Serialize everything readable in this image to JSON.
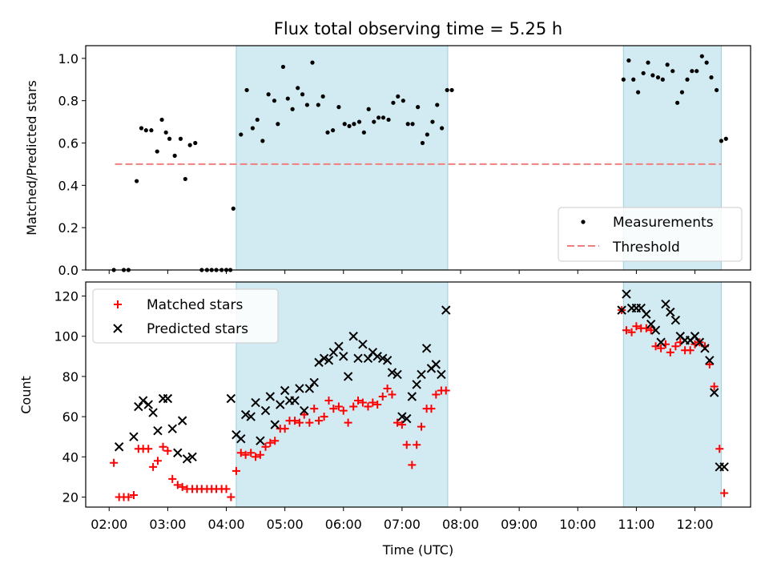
{
  "figure": {
    "title": "Flux total observing time = 5.25 h",
    "xlabel": "Time (UTC)"
  },
  "chart_data": [
    {
      "type": "scatter",
      "title": "Flux total observing time = 5.25 h",
      "xlabel": "",
      "ylabel": "Matched/Predicted stars",
      "xlim_hours": [
        1.6,
        12.95
      ],
      "ylim": [
        0,
        1.06
      ],
      "yticks": [
        "0.0",
        "0.2",
        "0.4",
        "0.6",
        "0.8",
        "1.0"
      ],
      "shaded_intervals_hours": [
        [
          4.17,
          7.78
        ],
        [
          10.78,
          12.45
        ]
      ],
      "shade_color": "#add8e6",
      "legend_position": "lower right",
      "threshold": {
        "name": "Threshold",
        "value": 0.5,
        "x_range_hours": [
          2.1,
          12.45
        ],
        "color": "#f08080"
      },
      "series": [
        {
          "name": "Measurements",
          "color": "#000000",
          "x_hours": [
            2.08,
            2.25,
            2.33,
            2.47,
            2.55,
            2.63,
            2.72,
            2.82,
            2.9,
            2.97,
            3.03,
            3.12,
            3.22,
            3.3,
            3.38,
            3.47,
            3.58,
            3.67,
            3.75,
            3.83,
            3.92,
            4.0,
            4.07,
            4.12,
            4.25,
            4.35,
            4.45,
            4.53,
            4.62,
            4.72,
            4.82,
            4.88,
            4.97,
            5.05,
            5.13,
            5.22,
            5.3,
            5.38,
            5.47,
            5.57,
            5.65,
            5.73,
            5.82,
            5.92,
            6.02,
            6.1,
            6.18,
            6.27,
            6.35,
            6.43,
            6.52,
            6.6,
            6.68,
            6.77,
            6.85,
            6.93,
            7.02,
            7.1,
            7.18,
            7.27,
            7.35,
            7.43,
            7.52,
            7.6,
            7.68,
            7.77,
            7.85,
            10.78,
            10.87,
            10.95,
            11.03,
            11.12,
            11.2,
            11.28,
            11.37,
            11.45,
            11.53,
            11.62,
            11.7,
            11.78,
            11.87,
            11.95,
            12.03,
            12.12,
            12.2,
            12.28,
            12.37,
            12.45,
            12.53
          ],
          "y": [
            0.0,
            0.0,
            0.0,
            0.42,
            0.67,
            0.66,
            0.66,
            0.56,
            0.71,
            0.65,
            0.62,
            0.54,
            0.62,
            0.43,
            0.59,
            0.6,
            0.0,
            0.0,
            0.0,
            0.0,
            0.0,
            0.0,
            0.0,
            0.29,
            0.64,
            0.85,
            0.67,
            0.71,
            0.61,
            0.83,
            0.8,
            0.69,
            0.96,
            0.81,
            0.76,
            0.86,
            0.83,
            0.78,
            0.98,
            0.78,
            0.82,
            0.65,
            0.66,
            0.77,
            0.69,
            0.68,
            0.69,
            0.7,
            0.65,
            0.76,
            0.7,
            0.72,
            0.72,
            0.71,
            0.79,
            0.82,
            0.8,
            0.69,
            0.69,
            0.77,
            0.6,
            0.64,
            0.7,
            0.78,
            0.67,
            0.85,
            0.85,
            0.9,
            0.99,
            0.9,
            0.84,
            0.93,
            0.98,
            0.92,
            0.91,
            0.9,
            0.97,
            0.94,
            0.79,
            0.84,
            0.9,
            0.94,
            0.94,
            1.01,
            0.98,
            0.91,
            0.85,
            0.61,
            0.62
          ]
        }
      ]
    },
    {
      "type": "scatter",
      "title": "",
      "xlabel": "Time (UTC)",
      "ylabel": "Count",
      "xlim_hours": [
        1.6,
        12.95
      ],
      "ylim": [
        15,
        127
      ],
      "yticks": [
        "20",
        "40",
        "60",
        "80",
        "100",
        "120"
      ],
      "xticks": [
        "02:00",
        "03:00",
        "04:00",
        "05:00",
        "06:00",
        "07:00",
        "08:00",
        "09:00",
        "10:00",
        "11:00",
        "12:00"
      ],
      "xticks_hours": [
        2,
        3,
        4,
        5,
        6,
        7,
        8,
        9,
        10,
        11,
        12
      ],
      "shaded_intervals_hours": [
        [
          4.17,
          7.78
        ],
        [
          10.78,
          12.45
        ]
      ],
      "shade_color": "#add8e6",
      "legend_position": "upper left",
      "series": [
        {
          "name": "Matched stars",
          "color": "#ff0000",
          "marker": "+",
          "x_hours": [
            2.08,
            2.17,
            2.25,
            2.33,
            2.42,
            2.5,
            2.58,
            2.67,
            2.75,
            2.83,
            2.92,
            3.0,
            3.08,
            3.17,
            3.25,
            3.33,
            3.42,
            3.5,
            3.58,
            3.67,
            3.75,
            3.83,
            3.92,
            4.0,
            4.08,
            4.17,
            4.25,
            4.33,
            4.42,
            4.5,
            4.58,
            4.67,
            4.75,
            4.83,
            4.92,
            5.0,
            5.08,
            5.17,
            5.25,
            5.33,
            5.42,
            5.5,
            5.58,
            5.67,
            5.75,
            5.83,
            5.92,
            6.0,
            6.08,
            6.17,
            6.25,
            6.33,
            6.42,
            6.5,
            6.58,
            6.67,
            6.75,
            6.83,
            6.92,
            7.0,
            7.08,
            7.17,
            7.25,
            7.33,
            7.42,
            7.5,
            7.58,
            7.67,
            7.75,
            10.75,
            10.83,
            10.92,
            11.0,
            11.08,
            11.17,
            11.25,
            11.33,
            11.42,
            11.5,
            11.58,
            11.67,
            11.75,
            11.83,
            11.92,
            12.0,
            12.08,
            12.17,
            12.25,
            12.33,
            12.42,
            12.5
          ],
          "y": [
            37,
            20,
            20,
            20,
            21,
            44,
            44,
            44,
            35,
            38,
            45,
            43,
            29,
            26,
            25,
            24,
            24,
            24,
            24,
            24,
            24,
            24,
            24,
            24,
            20,
            33,
            42,
            41,
            42,
            40,
            41,
            45,
            47,
            48,
            54,
            54,
            58,
            58,
            57,
            61,
            57,
            64,
            58,
            60,
            68,
            64,
            65,
            63,
            57,
            65,
            68,
            67,
            65,
            67,
            66,
            70,
            74,
            71,
            57,
            56,
            46,
            36,
            46,
            55,
            64,
            64,
            71,
            73,
            73,
            113,
            103,
            102,
            105,
            104,
            104,
            103,
            95,
            94,
            96,
            92,
            95,
            97,
            93,
            93,
            96,
            97,
            95,
            86,
            75,
            44,
            22
          ]
        },
        {
          "name": "Predicted stars",
          "color": "#000000",
          "marker": "x",
          "x_hours": [
            2.17,
            2.42,
            2.5,
            2.58,
            2.67,
            2.75,
            2.83,
            2.92,
            3.0,
            3.08,
            3.17,
            3.25,
            3.33,
            3.42,
            4.08,
            4.17,
            4.25,
            4.33,
            4.42,
            4.5,
            4.58,
            4.67,
            4.75,
            4.83,
            4.92,
            5.0,
            5.08,
            5.17,
            5.25,
            5.33,
            5.42,
            5.5,
            5.58,
            5.67,
            5.75,
            5.83,
            5.92,
            6.0,
            6.08,
            6.17,
            6.25,
            6.33,
            6.42,
            6.5,
            6.58,
            6.67,
            6.75,
            6.83,
            6.92,
            7.0,
            7.08,
            7.17,
            7.25,
            7.33,
            7.42,
            7.5,
            7.58,
            7.67,
            7.75,
            10.75,
            10.83,
            10.92,
            11.0,
            11.08,
            11.17,
            11.25,
            11.33,
            11.42,
            11.5,
            11.58,
            11.67,
            11.75,
            11.83,
            11.92,
            12.0,
            12.08,
            12.17,
            12.25,
            12.33,
            12.42,
            12.5
          ],
          "y": [
            45,
            50,
            65,
            68,
            66,
            62,
            53,
            69,
            69,
            54,
            42,
            58,
            39,
            40,
            69,
            51,
            49,
            61,
            60,
            67,
            48,
            63,
            70,
            56,
            66,
            73,
            68,
            68,
            74,
            63,
            74,
            77,
            87,
            89,
            88,
            92,
            95,
            90,
            80,
            100,
            89,
            96,
            89,
            92,
            90,
            89,
            88,
            82,
            81,
            60,
            59,
            70,
            76,
            81,
            94,
            84,
            86,
            81,
            113,
            113,
            121,
            114,
            114,
            114,
            111,
            106,
            103,
            97,
            116,
            112,
            108,
            100,
            98,
            98,
            100,
            97,
            94,
            88,
            72,
            35,
            35
          ]
        }
      ]
    }
  ]
}
